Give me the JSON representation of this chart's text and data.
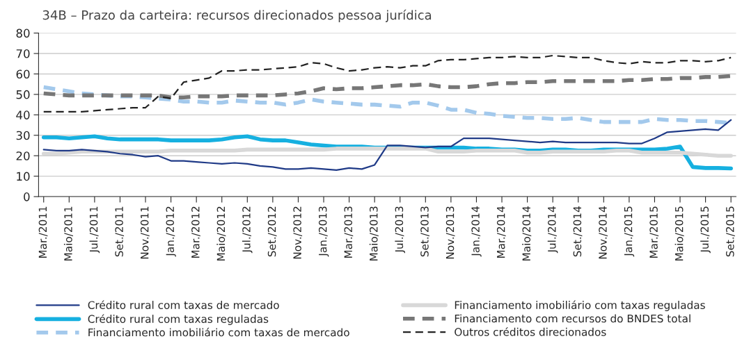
{
  "chart_data": {
    "type": "line",
    "title": "34B – Prazo da carteira: recursos direcionados pessoa jurídica",
    "categories": [
      "Mar./2011",
      null,
      "Maio/2011",
      null,
      "Jul./2011",
      null,
      "Set./2011",
      null,
      "Nov./2011",
      null,
      "Jan./2012",
      null,
      "Mar./2012",
      null,
      "Maio/2012",
      null,
      "Jul./2012",
      null,
      "Set./2012",
      null,
      "Nov./2012",
      null,
      "Jan./2013",
      null,
      "Mar./2013",
      null,
      "Maio/2013",
      null,
      "Jul./2013",
      null,
      "Set./2013",
      null,
      "Nov./2013",
      null,
      "Jan./2014",
      null,
      "Mar./2014",
      null,
      "Maio/2014",
      null,
      "Jul./2014",
      null,
      "Set./2014",
      null,
      "Nov./2014",
      null,
      "Jan./2015",
      null,
      "Mar./2015",
      null,
      "Maio/2015",
      null,
      "Jul./2015",
      null,
      "Set./2015"
    ],
    "series": [
      {
        "name": "Crédito rural com taxas de mercado",
        "color": "#1f3a87",
        "line_style": "solid",
        "values": [
          23,
          22.5,
          22.5,
          23,
          22.5,
          22,
          21,
          20.5,
          19.5,
          20,
          17.5,
          17.5,
          17,
          16.5,
          16,
          16.5,
          16,
          15,
          14.5,
          13.5,
          13.5,
          14,
          13.5,
          13,
          14,
          13.5,
          15.5,
          25,
          25,
          24.5,
          24,
          24.5,
          24.5,
          28.5,
          28.5,
          28.5,
          28,
          27.5,
          27,
          26.5,
          27,
          26.5,
          26.5,
          26.5,
          26.5,
          26.5,
          26,
          26,
          28.5,
          31.5,
          32,
          32.5,
          33,
          32.5,
          37.5
        ]
      },
      {
        "name": "Crédito rural com taxas reguladas",
        "color": "#16b0e0",
        "line_style": "solid",
        "values": [
          29,
          29,
          28.5,
          29,
          29.5,
          28.5,
          28,
          28,
          28,
          28,
          27.5,
          27.5,
          27.5,
          27.5,
          28,
          29,
          29.5,
          28,
          27.5,
          27.5,
          26.5,
          25.5,
          25,
          24.5,
          24.5,
          24.5,
          24,
          24,
          24,
          24,
          24,
          24,
          24,
          24,
          23.5,
          23.5,
          23,
          23,
          22.5,
          22.5,
          23,
          23,
          22.5,
          22.5,
          23,
          23,
          23,
          23,
          23,
          23.5,
          24.5,
          14.5,
          14,
          14,
          13.8
        ]
      },
      {
        "name": "Financiamento imobiliário com taxas de mercado",
        "color": "#a3c9ec",
        "line_style": "dashed",
        "values": [
          53.5,
          52.5,
          51.5,
          50.5,
          50,
          49.5,
          49,
          49,
          48.5,
          48,
          47.5,
          46.5,
          46.5,
          46,
          46,
          47,
          46.5,
          46,
          46,
          45,
          46,
          47.5,
          46.5,
          46,
          45.5,
          45,
          45,
          44.5,
          44,
          46,
          46,
          44.5,
          42.5,
          42.5,
          41,
          40.5,
          39.5,
          39,
          38.5,
          38.5,
          38,
          38,
          38.5,
          37.5,
          36.5,
          36.5,
          36.5,
          36.5,
          38,
          37.5,
          37.5,
          37,
          37,
          36.5,
          36
        ]
      },
      {
        "name": "Financiamento imobiliário com taxas reguladas",
        "color": "#d8d8d8",
        "line_style": "solid",
        "values": [
          21,
          21,
          21.5,
          22,
          22,
          22,
          22,
          22,
          22,
          22,
          22.5,
          22.5,
          22.5,
          22.5,
          22.5,
          22.5,
          23,
          23,
          23,
          23,
          23,
          23,
          23,
          23.5,
          23.5,
          23.5,
          23.5,
          23.5,
          23.5,
          23.5,
          23.5,
          22,
          22,
          22,
          22.5,
          22.5,
          22.5,
          22.5,
          21.5,
          21.5,
          22,
          22,
          22,
          22,
          22,
          22.5,
          22.5,
          21.5,
          21.5,
          21.5,
          21.5,
          21,
          20.5,
          20,
          20
        ]
      },
      {
        "name": "Financiamento com recursos do BNDES total",
        "color": "#777777",
        "line_style": "dashed",
        "values": [
          50.5,
          50,
          49.5,
          49.5,
          49.5,
          49.5,
          49.5,
          49.5,
          49.5,
          49.5,
          48.5,
          48.5,
          49,
          49,
          49,
          49.5,
          49.5,
          49.5,
          49.5,
          50,
          50.5,
          51.5,
          53,
          52.5,
          53,
          53,
          53.5,
          54,
          54.5,
          54.5,
          55,
          54,
          53.5,
          53.5,
          54,
          55,
          55.5,
          55.5,
          56,
          56,
          56.5,
          56.5,
          56.5,
          56.5,
          56.5,
          56.5,
          57,
          57,
          57.5,
          57.5,
          58,
          58,
          58.5,
          58.5,
          59
        ]
      },
      {
        "name": "Outros créditos direcionados",
        "color": "#222222",
        "line_style": "dashed",
        "values": [
          41.5,
          41.5,
          41.5,
          41.5,
          42,
          42.5,
          43,
          43.5,
          43.5,
          49,
          48,
          56,
          57,
          58,
          61.5,
          61.5,
          62,
          62,
          62.5,
          63,
          63.5,
          65.5,
          65,
          63,
          61.5,
          62,
          63,
          63.5,
          63,
          64,
          64,
          66.5,
          67,
          67,
          67.5,
          68,
          68,
          68.5,
          68,
          68,
          69,
          68.5,
          68,
          68,
          66.5,
          65.5,
          65,
          66,
          65.5,
          65.5,
          66.5,
          66.5,
          66,
          66.5,
          68
        ]
      }
    ],
    "ylim": [
      0,
      80
    ],
    "yticks": [
      0,
      10,
      20,
      30,
      40,
      50,
      60,
      70,
      80
    ],
    "grid": "y",
    "legend": "bottom",
    "marker": "none"
  }
}
